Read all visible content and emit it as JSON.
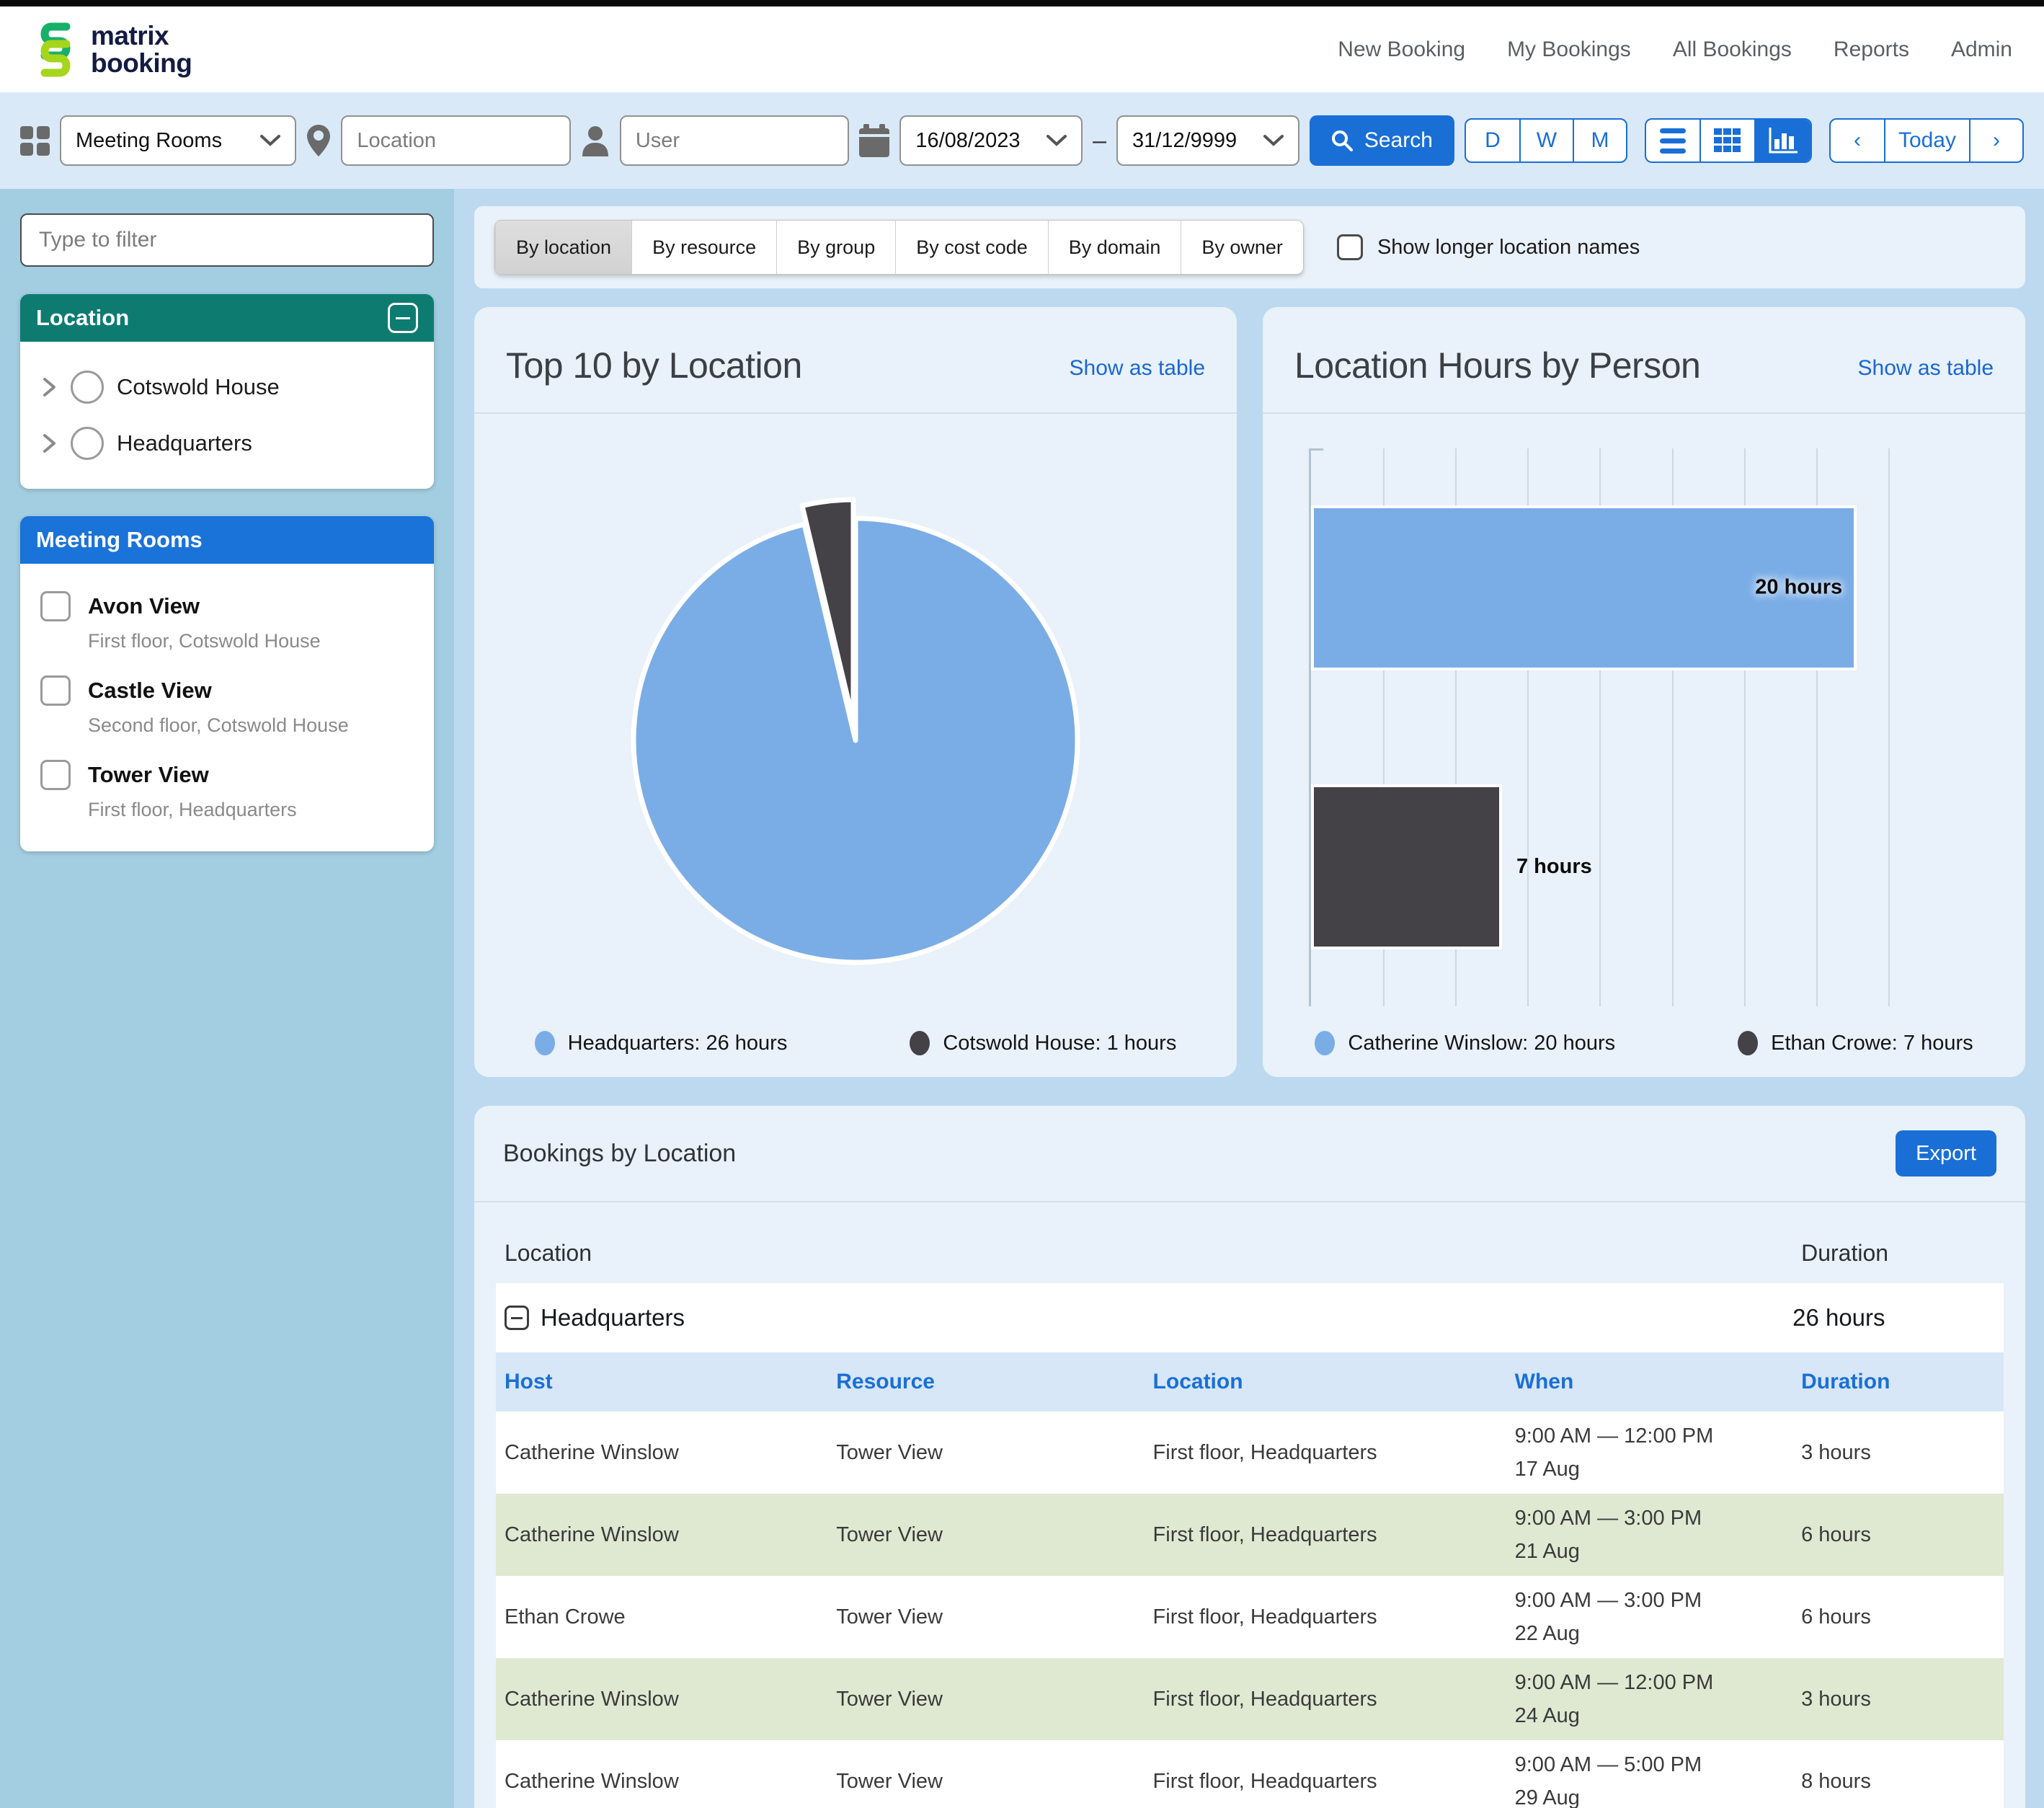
{
  "header": {
    "logo_line1": "matrix",
    "logo_line2": "booking",
    "nav": [
      "New Booking",
      "My Bookings",
      "All Bookings",
      "Reports",
      "Admin"
    ]
  },
  "toolbar": {
    "resource_type": "Meeting Rooms",
    "location_placeholder": "Location",
    "user_placeholder": "User",
    "date_from": "16/08/2023",
    "date_separator": "–",
    "date_to": "31/12/9999",
    "search_label": "Search",
    "day_label": "D",
    "week_label": "W",
    "month_label": "M",
    "prev_label": "‹",
    "today_label": "Today",
    "next_label": "›"
  },
  "sidebar": {
    "filter_placeholder": "Type to filter",
    "location_panel": {
      "title": "Location",
      "items": [
        {
          "label": "Cotswold House"
        },
        {
          "label": "Headquarters"
        }
      ]
    },
    "rooms_panel": {
      "title": "Meeting Rooms",
      "items": [
        {
          "label": "Avon View",
          "sublabel": "First floor, Cotswold House"
        },
        {
          "label": "Castle View",
          "sublabel": "Second floor, Cotswold House"
        },
        {
          "label": "Tower View",
          "sublabel": "First floor, Headquarters"
        }
      ]
    }
  },
  "tabs": {
    "items": [
      "By location",
      "By resource",
      "By group",
      "By cost code",
      "By domain",
      "By owner"
    ],
    "active": "By location",
    "checkbox_label": "Show longer location names"
  },
  "chart_data": [
    {
      "type": "pie",
      "title": "Top 10 by Location",
      "link": "Show as table",
      "labels": [
        "Headquarters",
        "Cotswold House"
      ],
      "values": [
        26,
        1
      ],
      "unit": "hours",
      "colors": [
        "#7aade6",
        "#454247"
      ],
      "explode": [
        0,
        26
      ],
      "legend_position": "bottom",
      "legend": [
        {
          "label": "Headquarters: 26 hours",
          "color": "#7aade6"
        },
        {
          "label": "Cotswold House: 1 hours",
          "color": "#454247"
        }
      ]
    },
    {
      "type": "bar",
      "orientation": "horizontal",
      "title": "Location Hours by Person",
      "link": "Show as table",
      "categories": [
        "Catherine Winslow",
        "Ethan Crowe"
      ],
      "values": [
        20,
        7
      ],
      "labels": [
        "20 hours",
        "7 hours"
      ],
      "unit": "hours",
      "colors": [
        "#7aade6",
        "#454247"
      ],
      "xlim": [
        0,
        23.8
      ],
      "gridlines": 9,
      "grid": true,
      "legend_position": "bottom",
      "legend": [
        {
          "label": "Catherine Winslow: 20 hours",
          "color": "#7aade6"
        },
        {
          "label": "Ethan Crowe: 7 hours",
          "color": "#454247"
        }
      ]
    }
  ],
  "table": {
    "title": "Bookings by Location",
    "export_label": "Export",
    "location_header": "Location",
    "duration_header": "Duration",
    "group": {
      "name": "Headquarters",
      "duration": "26 hours"
    },
    "columns": [
      "Host",
      "Resource",
      "Location",
      "When",
      "Duration"
    ],
    "rows": [
      {
        "host": "Catherine Winslow",
        "resource": "Tower View",
        "location": "First floor, Headquarters",
        "when_time": "9:00 AM — 12:00 PM",
        "when_date": "17 Aug",
        "duration": "3 hours"
      },
      {
        "host": "Catherine Winslow",
        "resource": "Tower View",
        "location": "First floor, Headquarters",
        "when_time": "9:00 AM — 3:00 PM",
        "when_date": "21 Aug",
        "duration": "6 hours"
      },
      {
        "host": "Ethan Crowe",
        "resource": "Tower View",
        "location": "First floor, Headquarters",
        "when_time": "9:00 AM — 3:00 PM",
        "when_date": "22 Aug",
        "duration": "6 hours"
      },
      {
        "host": "Catherine Winslow",
        "resource": "Tower View",
        "location": "First floor, Headquarters",
        "when_time": "9:00 AM — 12:00 PM",
        "when_date": "24 Aug",
        "duration": "3 hours"
      },
      {
        "host": "Catherine Winslow",
        "resource": "Tower View",
        "location": "First floor, Headquarters",
        "when_time": "9:00 AM — 5:00 PM",
        "when_date": "29 Aug",
        "duration": "8 hours"
      }
    ]
  },
  "colors": {
    "accent_blue": "#1a6fd6",
    "link_blue": "#1967d2",
    "teal_header": "#0e7b71",
    "bar_blue": "#7aade6",
    "bar_dark": "#454247",
    "row_green": "#dfe9d2",
    "page_bg": "#bcd9ef",
    "sidebar_bg": "#a3cde0",
    "card_bg": "#e9f1fa"
  }
}
